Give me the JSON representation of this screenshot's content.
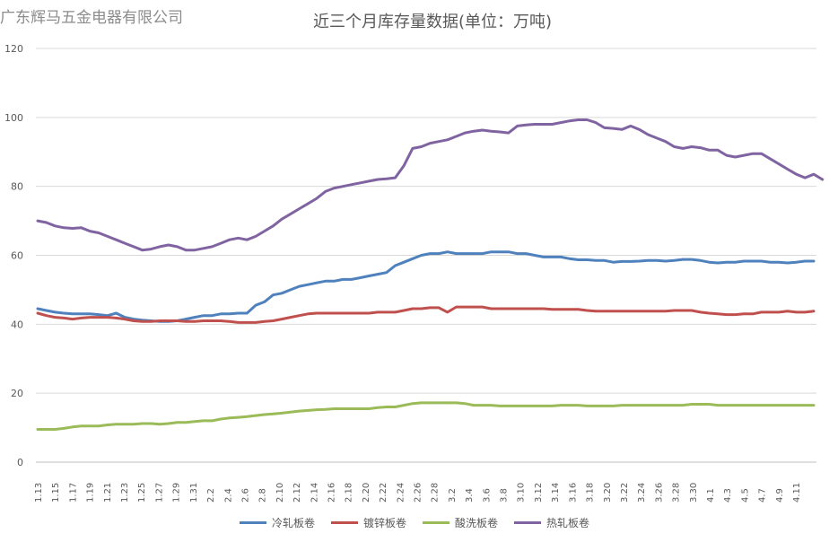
{
  "watermark": "广东辉马五金电器有限公司",
  "chart_data": {
    "type": "line",
    "title": "近三个月库存量数据(单位：万吨)",
    "xlabel": "",
    "ylabel": "",
    "ylim": [
      0,
      120
    ],
    "yticks": [
      0,
      20,
      40,
      60,
      80,
      100,
      120
    ],
    "grid": true,
    "legend": "bottom",
    "tick_labels": [
      "1.13",
      "1.15",
      "1.17",
      "1.19",
      "1.21",
      "1.23",
      "1.25",
      "1.27",
      "1.29",
      "1.31",
      "2.2",
      "2.4",
      "2.6",
      "2.8",
      "2.10",
      "2.12",
      "2.14",
      "2.16",
      "2.18",
      "2.20",
      "2.22",
      "2.24",
      "2.26",
      "2.28",
      "3.2",
      "3.4",
      "3.6",
      "3.8",
      "3.10",
      "3.12",
      "3.14",
      "3.16",
      "3.18",
      "3.20",
      "3.22",
      "3.24",
      "3.26",
      "3.28",
      "3.30",
      "4.1",
      "4.3",
      "4.5",
      "4.7",
      "4.9",
      "4.11"
    ],
    "series": [
      {
        "name": "冷轧板卷",
        "color": "#4f81bd",
        "values": [
          44.5,
          44,
          43.5,
          43.2,
          43,
          43,
          43,
          42.8,
          42.5,
          43.2,
          42,
          41.5,
          41.2,
          41,
          40.8,
          40.8,
          41,
          41.5,
          42,
          42.5,
          42.5,
          43,
          43,
          43.2,
          43.2,
          45.5,
          46.5,
          48.5,
          49,
          50,
          51,
          51.5,
          52,
          52.5,
          52.5,
          53,
          53,
          53.5,
          54,
          54.5,
          55,
          57,
          58,
          59,
          60,
          60.5,
          60.5,
          61,
          60.5,
          60.5,
          60.5,
          60.5,
          61,
          61,
          61,
          60.5,
          60.5,
          60,
          59.5,
          59.5,
          59.5,
          59,
          58.7,
          58.7,
          58.5,
          58.5,
          58,
          58.2,
          58.2,
          58.3,
          58.5,
          58.5,
          58.3,
          58.5,
          58.8,
          58.8,
          58.5,
          58,
          57.8,
          58,
          58,
          58.3,
          58.3,
          58.3,
          58,
          58,
          57.8,
          58,
          58.3,
          58.3
        ]
      },
      {
        "name": "镀锌板卷",
        "color": "#c0504d",
        "values": [
          43.2,
          42.5,
          42,
          41.8,
          41.5,
          41.8,
          42,
          42,
          42,
          41.8,
          41.5,
          41,
          40.8,
          40.8,
          41,
          41,
          41,
          40.8,
          40.8,
          41,
          41,
          41,
          40.8,
          40.5,
          40.5,
          40.5,
          40.8,
          41,
          41.5,
          42,
          42.5,
          43,
          43.2,
          43.2,
          43.2,
          43.2,
          43.2,
          43.2,
          43.2,
          43.5,
          43.5,
          43.5,
          44,
          44.5,
          44.5,
          44.8,
          44.8,
          43.5,
          45,
          45,
          45,
          45,
          44.5,
          44.5,
          44.5,
          44.5,
          44.5,
          44.5,
          44.5,
          44.3,
          44.3,
          44.3,
          44.3,
          44,
          43.8,
          43.8,
          43.8,
          43.8,
          43.8,
          43.8,
          43.8,
          43.8,
          43.8,
          44,
          44,
          44,
          43.5,
          43.2,
          43,
          42.8,
          42.8,
          43,
          43,
          43.5,
          43.5,
          43.5,
          43.8,
          43.5,
          43.5,
          43.8
        ]
      },
      {
        "name": "酸洗板卷",
        "color": "#9bbb59",
        "values": [
          9.5,
          9.5,
          9.5,
          9.8,
          10.2,
          10.5,
          10.5,
          10.5,
          10.8,
          11,
          11,
          11,
          11.2,
          11.2,
          11,
          11.2,
          11.5,
          11.5,
          11.8,
          12,
          12,
          12.5,
          12.8,
          13,
          13.2,
          13.5,
          13.8,
          14,
          14.2,
          14.5,
          14.8,
          15,
          15.2,
          15.3,
          15.5,
          15.5,
          15.5,
          15.5,
          15.5,
          15.8,
          16,
          16,
          16.5,
          17,
          17.2,
          17.2,
          17.2,
          17.2,
          17.2,
          17,
          16.5,
          16.5,
          16.5,
          16.3,
          16.3,
          16.3,
          16.3,
          16.3,
          16.3,
          16.3,
          16.5,
          16.5,
          16.5,
          16.3,
          16.3,
          16.3,
          16.3,
          16.5,
          16.5,
          16.5,
          16.5,
          16.5,
          16.5,
          16.5,
          16.5,
          16.8,
          16.8,
          16.8,
          16.5,
          16.5,
          16.5,
          16.5,
          16.5,
          16.5,
          16.5,
          16.5,
          16.5,
          16.5,
          16.5,
          16.5
        ]
      },
      {
        "name": "热轧板卷",
        "color": "#8064a2",
        "values": [
          70,
          69.5,
          68.5,
          68,
          67.8,
          68,
          67,
          66.5,
          65.5,
          64.5,
          63.5,
          62.5,
          61.5,
          61.8,
          62.5,
          63,
          62.5,
          61.5,
          61.5,
          62,
          62.5,
          63.5,
          64.5,
          65,
          64.5,
          65.5,
          67,
          68.5,
          70.5,
          72,
          73.5,
          75,
          76.5,
          78.5,
          79.5,
          80,
          80.5,
          81,
          81.5,
          82,
          82.2,
          82.5,
          86,
          91,
          91.5,
          92.5,
          93,
          93.5,
          94.5,
          95.5,
          96,
          96.3,
          96,
          95.8,
          95.5,
          97.5,
          97.8,
          98,
          98,
          98,
          98.5,
          99,
          99.3,
          99.3,
          98.5,
          97,
          96.8,
          96.5,
          97.5,
          96.5,
          95,
          94,
          93,
          91.5,
          91,
          91.5,
          91.2,
          90.5,
          90.5,
          89,
          88.5,
          89,
          89.5,
          89.5,
          88,
          86.5,
          85,
          83.5,
          82.5,
          83.5,
          82
        ]
      }
    ]
  }
}
